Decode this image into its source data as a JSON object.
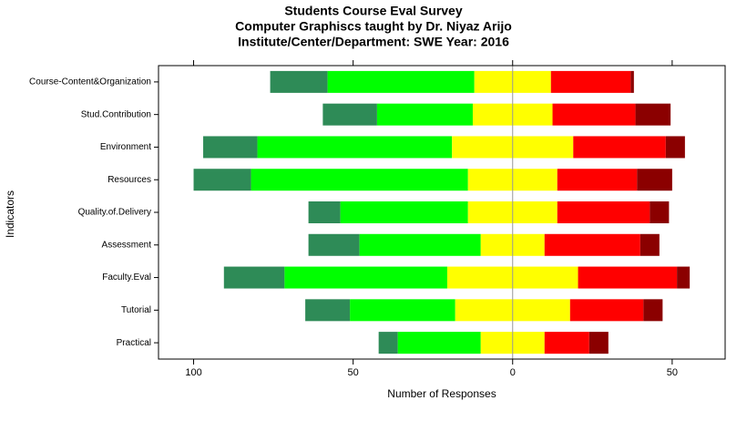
{
  "chart_data": {
    "type": "diverging_bar",
    "title": "Students Course Eval Survey",
    "subtitle": [
      "Computer Graphiscs taught by Dr. Niyaz Arijo",
      "Institute/Center/Department: SWE Year: 2016"
    ],
    "x_label": "Number of Responses",
    "y_label": "Indicators",
    "categories": [
      "Course-Content&Organization",
      "Stud.Contribution",
      "Environment",
      "Resources",
      "Quality.of.Delivery",
      "Assessment",
      "Faculty.Eval",
      "Tutorial",
      "Practical"
    ],
    "series": [
      {
        "color": "#2e8b57",
        "values": [
          18,
          17,
          17,
          18,
          10,
          16,
          19,
          14,
          6
        ]
      },
      {
        "color": "#00ff00",
        "values": [
          46,
          30,
          61,
          68,
          40,
          38,
          51,
          33,
          26
        ]
      },
      {
        "color": "#ffff00",
        "values": [
          24,
          25,
          38,
          28,
          28,
          20,
          41,
          36,
          20
        ]
      },
      {
        "color": "#ff0000",
        "values": [
          25,
          26,
          29,
          25,
          29,
          30,
          31,
          23,
          14
        ]
      },
      {
        "color": "#8b0000",
        "values": [
          1,
          11,
          6,
          11,
          6,
          6,
          4,
          6,
          6
        ]
      }
    ],
    "xlim": [
      -111,
      66.6
    ],
    "xticks": [
      {
        "value": -100,
        "label": "100"
      },
      {
        "value": -50,
        "label": "50"
      },
      0,
      {
        "value": 50,
        "label": "50"
      }
    ]
  }
}
